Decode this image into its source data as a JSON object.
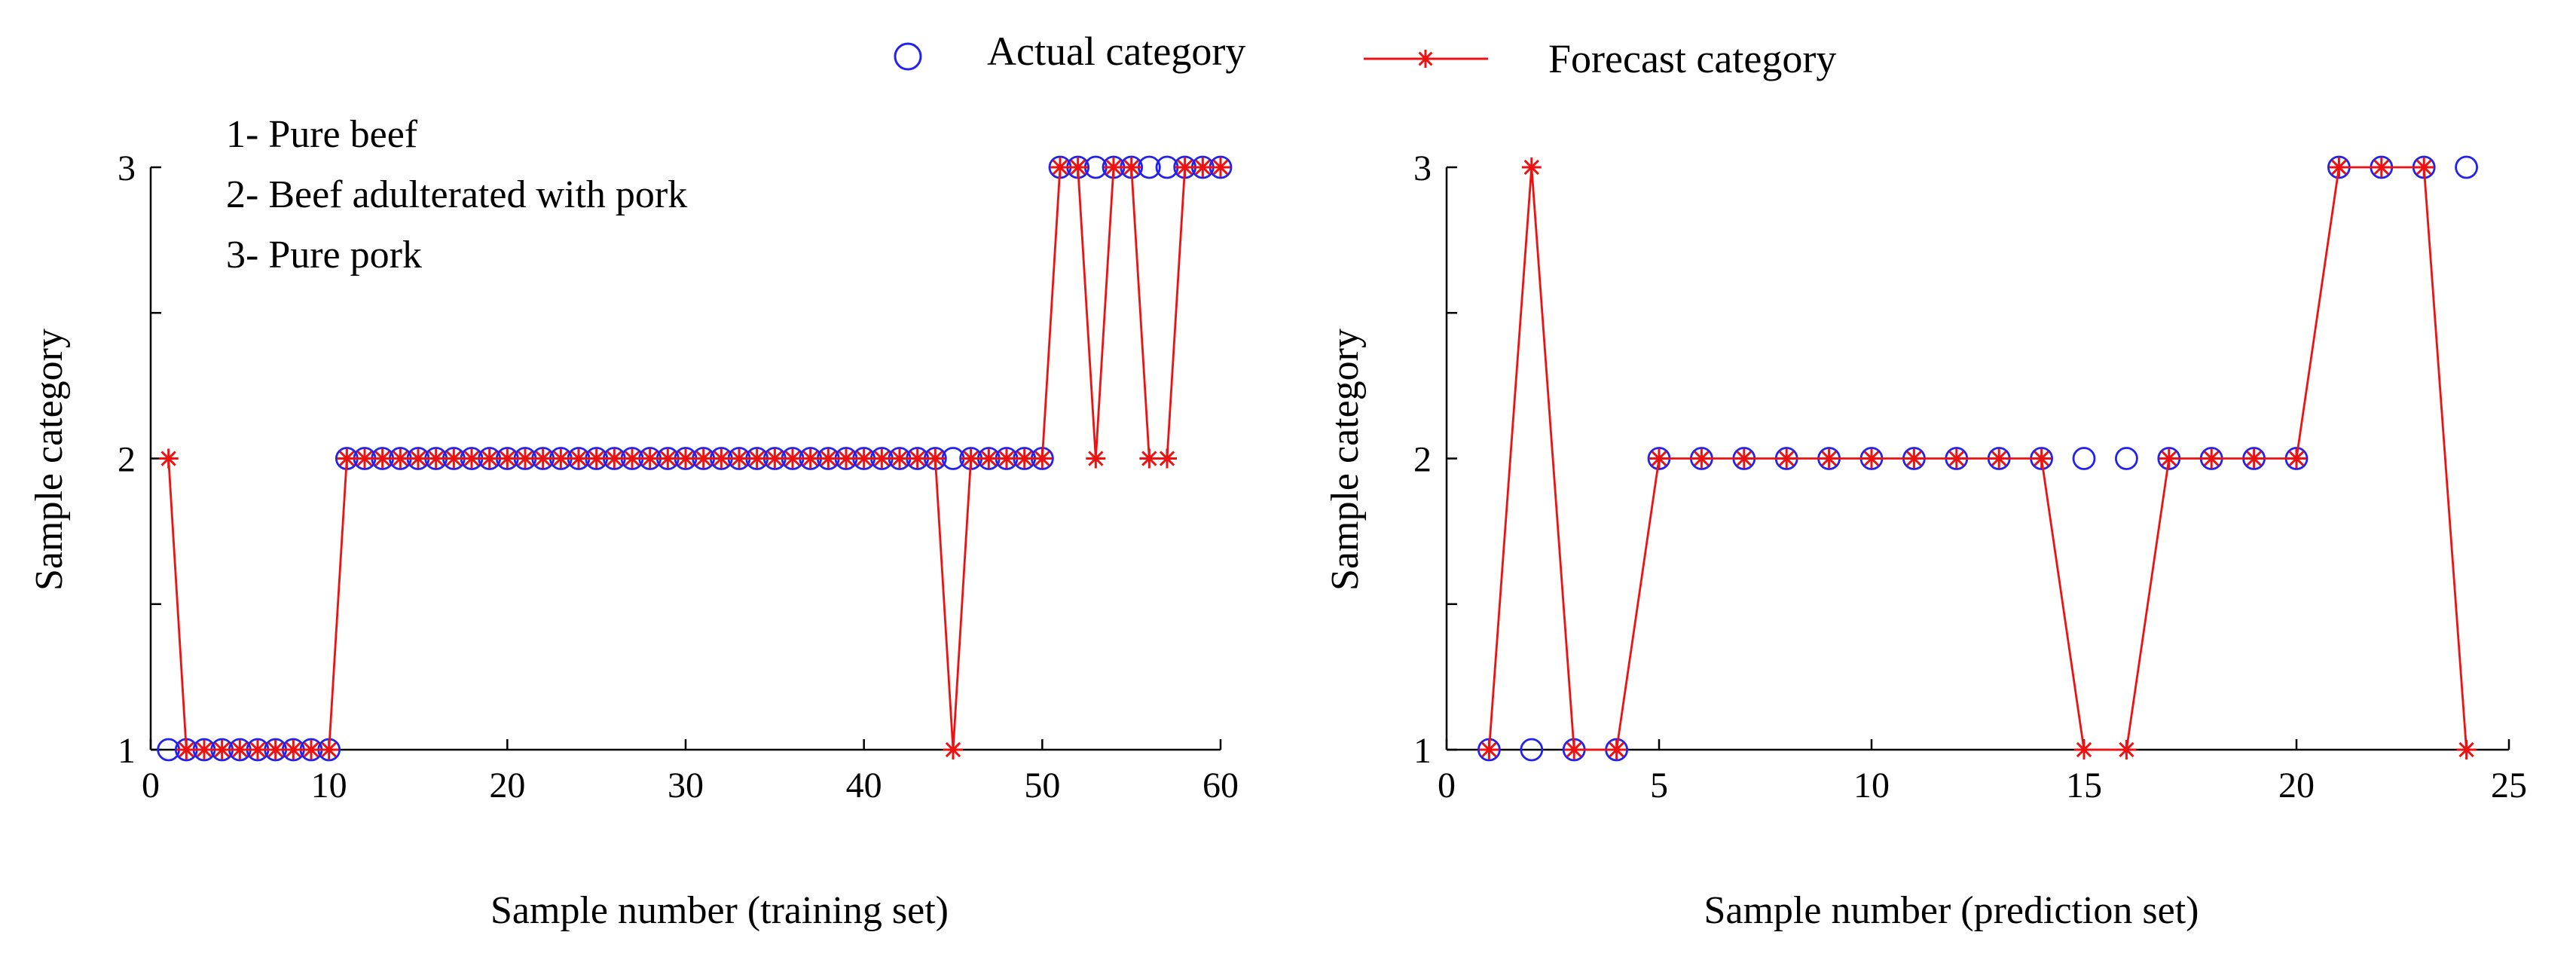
{
  "legend": {
    "actual_label": "Actual category",
    "forecast_label": "Forecast category"
  },
  "category_key": {
    "items": [
      "1- Pure beef",
      "2- Beef adulterated with pork",
      "3- Pure pork"
    ]
  },
  "colors": {
    "actual": "#2222ee",
    "forecast": "#ee1111",
    "axis": "#000000"
  },
  "chart_data": [
    {
      "type": "scatter+line",
      "name": "training",
      "xlabel": "Sample number (training set)",
      "ylabel": "Sample category",
      "xlim": [
        0,
        60
      ],
      "ylim": [
        1,
        3
      ],
      "xticks": [
        0,
        10,
        20,
        30,
        40,
        50,
        60
      ],
      "yticks": [
        1,
        2,
        3
      ],
      "x": [
        1,
        2,
        3,
        4,
        5,
        6,
        7,
        8,
        9,
        10,
        11,
        12,
        13,
        14,
        15,
        16,
        17,
        18,
        19,
        20,
        21,
        22,
        23,
        24,
        25,
        26,
        27,
        28,
        29,
        30,
        31,
        32,
        33,
        34,
        35,
        36,
        37,
        38,
        39,
        40,
        41,
        42,
        43,
        44,
        45,
        46,
        47,
        48,
        49,
        50,
        51,
        52,
        53,
        54,
        55,
        56,
        57,
        58,
        59,
        60
      ],
      "series": [
        {
          "name": "Actual category",
          "style": "circle",
          "values": [
            1,
            1,
            1,
            1,
            1,
            1,
            1,
            1,
            1,
            1,
            2,
            2,
            2,
            2,
            2,
            2,
            2,
            2,
            2,
            2,
            2,
            2,
            2,
            2,
            2,
            2,
            2,
            2,
            2,
            2,
            2,
            2,
            2,
            2,
            2,
            2,
            2,
            2,
            2,
            2,
            2,
            2,
            2,
            2,
            2,
            2,
            2,
            2,
            2,
            2,
            3,
            3,
            3,
            3,
            3,
            3,
            3,
            3,
            3,
            3
          ]
        },
        {
          "name": "Forecast category",
          "style": "line-star",
          "values": [
            2,
            1,
            1,
            1,
            1,
            1,
            1,
            1,
            1,
            1,
            2,
            2,
            2,
            2,
            2,
            2,
            2,
            2,
            2,
            2,
            2,
            2,
            2,
            2,
            2,
            2,
            2,
            2,
            2,
            2,
            2,
            2,
            2,
            2,
            2,
            2,
            2,
            2,
            2,
            2,
            2,
            2,
            2,
            2,
            1,
            2,
            2,
            2,
            2,
            2,
            3,
            3,
            2,
            3,
            3,
            2,
            2,
            3,
            3,
            3
          ]
        }
      ]
    },
    {
      "type": "scatter+line",
      "name": "prediction",
      "xlabel": "Sample number (prediction set)",
      "ylabel": "Sample category",
      "xlim": [
        0,
        25
      ],
      "ylim": [
        1,
        3
      ],
      "xticks": [
        0,
        5,
        10,
        15,
        20,
        25
      ],
      "yticks": [
        1,
        2,
        3
      ],
      "x": [
        1,
        2,
        3,
        4,
        5,
        6,
        7,
        8,
        9,
        10,
        11,
        12,
        13,
        14,
        15,
        16,
        17,
        18,
        19,
        20,
        21,
        22,
        23,
        24
      ],
      "series": [
        {
          "name": "Actual category",
          "style": "circle",
          "values": [
            1,
            1,
            1,
            1,
            2,
            2,
            2,
            2,
            2,
            2,
            2,
            2,
            2,
            2,
            2,
            2,
            2,
            2,
            2,
            2,
            3,
            3,
            3,
            3
          ]
        },
        {
          "name": "Forecast category",
          "style": "line-star",
          "values": [
            1,
            3,
            1,
            1,
            2,
            2,
            2,
            2,
            2,
            2,
            2,
            2,
            2,
            2,
            1,
            1,
            2,
            2,
            2,
            2,
            3,
            3,
            3,
            1
          ]
        }
      ]
    }
  ]
}
